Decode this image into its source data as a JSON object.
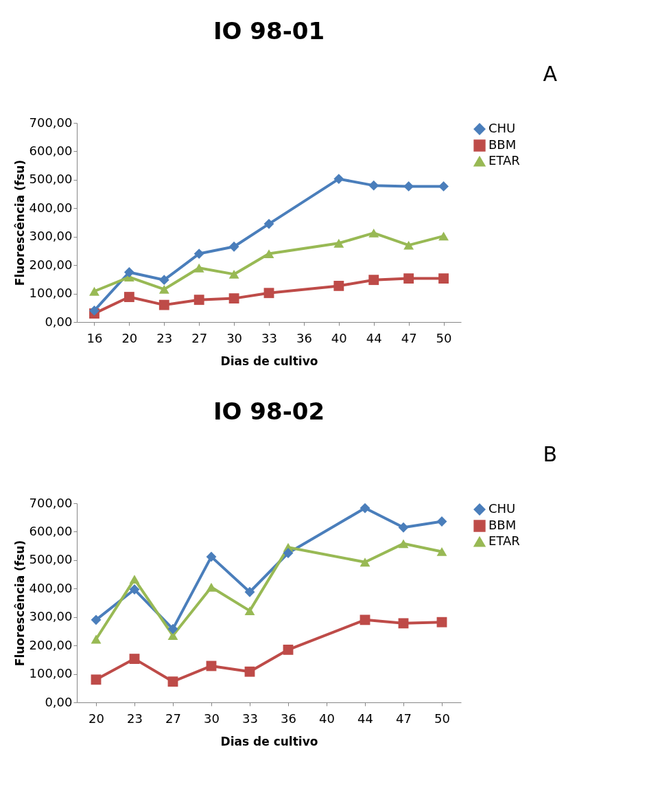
{
  "chart_data": [
    {
      "type": "line",
      "title": "IO 98-01",
      "annotations": [
        "A"
      ],
      "xlabel": "Dias de cultivo",
      "ylabel": "Fluorescência (fsu)",
      "categories": [
        "16",
        "20",
        "23",
        "27",
        "30",
        "33",
        "36",
        "40",
        "44",
        "47",
        "50"
      ],
      "ylim": [
        0,
        700
      ],
      "yticks": [
        {
          "value": 0,
          "label": "0,00"
        },
        {
          "value": 100,
          "label": "100,00"
        },
        {
          "value": 200,
          "label": "200,00"
        },
        {
          "value": 300,
          "label": "300,00"
        },
        {
          "value": 400,
          "label": "400,00"
        },
        {
          "value": 500,
          "label": "500,00"
        },
        {
          "value": 600,
          "label": "600,00"
        },
        {
          "value": 700,
          "label": "700,00"
        }
      ],
      "grid": false,
      "legend": "right",
      "line_style": "solid",
      "series": [
        {
          "name": "CHU",
          "color": "#4a7ebb",
          "marker": "diamond",
          "values": [
            40,
            175,
            148,
            240,
            265,
            345,
            null,
            503,
            480,
            477,
            477
          ]
        },
        {
          "name": "BBM",
          "color": "#be4b48",
          "marker": "square",
          "values": [
            30,
            88,
            60,
            78,
            83,
            102,
            null,
            127,
            148,
            153,
            153
          ]
        },
        {
          "name": "ETAR",
          "color": "#98b954",
          "marker": "triangle",
          "values": [
            108,
            158,
            115,
            190,
            168,
            240,
            null,
            277,
            313,
            270,
            302
          ]
        }
      ]
    },
    {
      "type": "line",
      "title": "IO 98-02",
      "annotations": [
        "B"
      ],
      "xlabel": "Dias de cultivo",
      "ylabel": "Fluorescência (fsu)",
      "categories": [
        "20",
        "23",
        "27",
        "30",
        "33",
        "36",
        "40",
        "44",
        "47",
        "50"
      ],
      "ylim": [
        0,
        700
      ],
      "yticks": [
        {
          "value": 0,
          "label": "0,00"
        },
        {
          "value": 100,
          "label": "100,00"
        },
        {
          "value": 200,
          "label": "200,00"
        },
        {
          "value": 300,
          "label": "300,00"
        },
        {
          "value": 400,
          "label": "400,00"
        },
        {
          "value": 500,
          "label": "500,00"
        },
        {
          "value": 600,
          "label": "600,00"
        },
        {
          "value": 700,
          "label": "700,00"
        }
      ],
      "grid": false,
      "legend": "right",
      "line_style": "solid",
      "series": [
        {
          "name": "CHU",
          "color": "#4a7ebb",
          "marker": "diamond",
          "values": [
            290,
            397,
            258,
            512,
            388,
            525,
            null,
            683,
            615,
            636
          ]
        },
        {
          "name": "BBM",
          "color": "#be4b48",
          "marker": "square",
          "values": [
            80,
            153,
            73,
            128,
            108,
            185,
            null,
            290,
            278,
            282
          ]
        },
        {
          "name": "ETAR",
          "color": "#98b954",
          "marker": "triangle",
          "values": [
            222,
            433,
            235,
            405,
            322,
            545,
            null,
            493,
            558,
            530
          ]
        }
      ]
    }
  ]
}
